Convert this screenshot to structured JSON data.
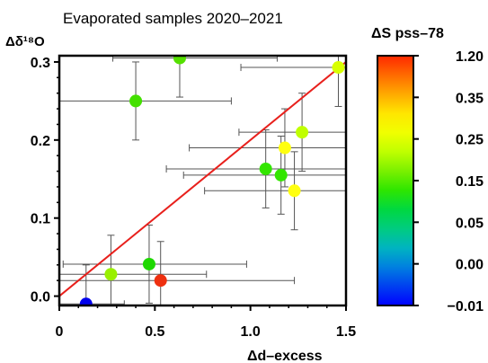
{
  "chart_data": {
    "type": "scatter",
    "title": "Evaporated samples 2020–2021",
    "xlabel": "Δd–excess",
    "ylabel": "Δδ¹⁸O",
    "xlim": [
      0,
      1.5
    ],
    "ylim": [
      -0.012,
      0.308
    ],
    "xticks": [
      "0",
      "0.5",
      "1.0",
      "1.5"
    ],
    "yticks": [
      "0.0",
      "0.1",
      "0.2",
      "0.3"
    ],
    "grid": false,
    "fit_line": {
      "x": [
        0,
        1.5
      ],
      "y": [
        0,
        0.3
      ],
      "color": "#e8201c"
    },
    "colorbar": {
      "title": "ΔS pss–78",
      "labels": [
        "1.20",
        "0.35",
        "0.25",
        "0.15",
        "0.05",
        "0.00",
        "−0.01"
      ],
      "colors": [
        "#ff2800",
        "#ff6a00",
        "#ffaa00",
        "#ffe600",
        "#f0ff00",
        "#bfff00",
        "#7af000",
        "#2ee600",
        "#00d840",
        "#00cc80",
        "#00b4c0",
        "#0080e0",
        "#0040f0",
        "#0000ff"
      ]
    },
    "points": [
      {
        "x": 0.63,
        "y": 0.305,
        "xerr": [
          0.35,
          0.51
        ],
        "yerr": [
          0.05,
          0.05
        ],
        "color": "#55e000"
      },
      {
        "x": 1.46,
        "y": 0.293,
        "xerr": [
          0.51,
          0.04
        ],
        "yerr": [
          0.05,
          0.05
        ],
        "color": "#d8ff00"
      },
      {
        "x": 0.4,
        "y": 0.25,
        "xerr": [
          0.4,
          0.5
        ],
        "yerr": [
          0.05,
          0.05
        ],
        "color": "#44e000"
      },
      {
        "x": 1.27,
        "y": 0.21,
        "xerr": [
          0.33,
          0.23
        ],
        "yerr": [
          0.05,
          0.05
        ],
        "color": "#c0ff00"
      },
      {
        "x": 1.18,
        "y": 0.19,
        "xerr": [
          0.5,
          0.32
        ],
        "yerr": [
          0.05,
          0.05
        ],
        "color": "#ffff10"
      },
      {
        "x": 1.08,
        "y": 0.163,
        "xerr": [
          0.52,
          0.42
        ],
        "yerr": [
          0.05,
          0.05
        ],
        "color": "#33e600"
      },
      {
        "x": 1.16,
        "y": 0.155,
        "xerr": [
          0.51,
          0.34
        ],
        "yerr": [
          0.05,
          0.05
        ],
        "color": "#33e600"
      },
      {
        "x": 1.23,
        "y": 0.135,
        "xerr": [
          0.47,
          0.27
        ],
        "yerr": [
          0.05,
          0.05
        ],
        "color": "#ffff10"
      },
      {
        "x": 0.47,
        "y": 0.041,
        "xerr": [
          0.45,
          0.51
        ],
        "yerr": [
          0.05,
          0.05
        ],
        "color": "#1ed800"
      },
      {
        "x": 0.27,
        "y": 0.028,
        "xerr": [
          0.27,
          0.5
        ],
        "yerr": [
          0.05,
          0.05
        ],
        "color": "#99f000"
      },
      {
        "x": 0.53,
        "y": 0.02,
        "xerr": [
          0.53,
          0.7
        ],
        "yerr": [
          0.05,
          0.05
        ],
        "color": "#ee3010"
      },
      {
        "x": 0.14,
        "y": -0.01,
        "xerr": [
          0.14,
          0.2
        ],
        "yerr": [
          0.05,
          0.05
        ],
        "color": "#0000ee"
      }
    ]
  }
}
